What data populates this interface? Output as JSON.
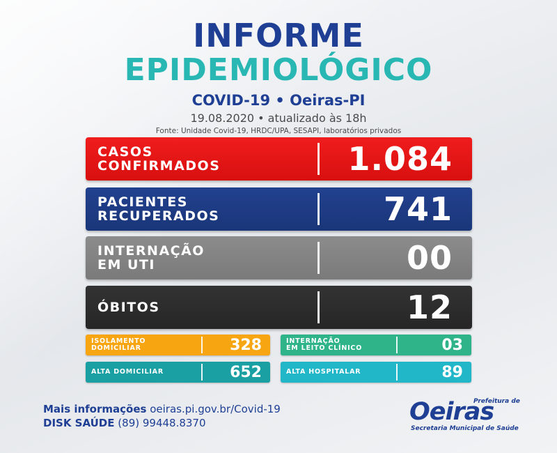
{
  "header": {
    "title_line1": "INFORME",
    "title_line2": "EPIDEMIOLÓGICO",
    "subtitle": "COVID-19 • Oeiras-PI",
    "date": "19.08.2020 • atualizado às 18h",
    "source": "Fonte: Unidade Covid-19, HRDC/UPA, SESAPI, laboratórios privados"
  },
  "main_stats": [
    {
      "label_line1": "CASOS",
      "label_line2": "CONFIRMADOS",
      "value": "1.084",
      "color": "#e81616"
    },
    {
      "label_line1": "PACIENTES",
      "label_line2": "RECUPERADOS",
      "value": "741",
      "color": "#1f3c86"
    },
    {
      "label_line1": "INTERNAÇÃO",
      "label_line2": "EM UTI",
      "value": "00",
      "color": "#858585"
    },
    {
      "label_line1": "ÓBITOS",
      "label_line2": "",
      "value": "12",
      "color": "#2d2d2d"
    }
  ],
  "secondary_stats": [
    {
      "label_line1": "ISOLAMENTO",
      "label_line2": "DOMICILIAR",
      "value": "328",
      "color": "#f7a612"
    },
    {
      "label_line1": "INTERNAÇÃO",
      "label_line2": "EM LEITO CLÍNICO",
      "value": "03",
      "color": "#2fb48a"
    },
    {
      "label_line1": "ALTA DOMICILIAR",
      "label_line2": "",
      "value": "652",
      "color": "#1a9fa3"
    },
    {
      "label_line1": "ALTA HOSPITALAR",
      "label_line2": "",
      "value": "89",
      "color": "#22b6c9"
    }
  ],
  "footer": {
    "info_label": "Mais informações",
    "info_url": "oeiras.pi.gov.br/Covid-19",
    "disk_label": "DISK SAÚDE",
    "disk_phone": "(89) 99448.8370"
  },
  "logo": {
    "prefix": "Prefeitura de",
    "name": "Oeiras",
    "secretaria": "Secretaria Municipal de Saúde"
  }
}
